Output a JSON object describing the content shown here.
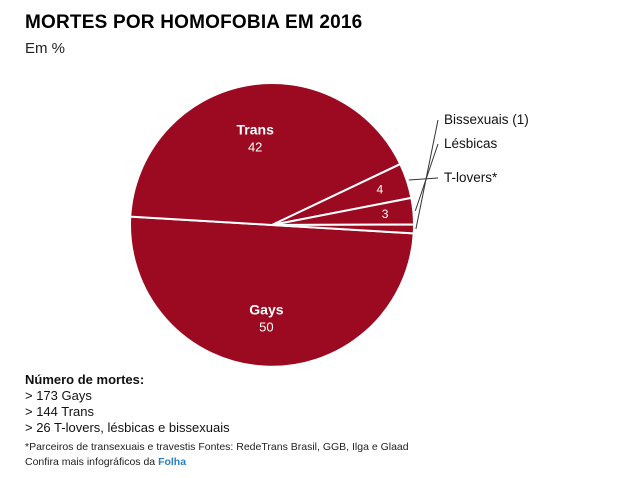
{
  "header": {
    "title": "MORTES POR HOMOFOBIA EM 2016",
    "subtitle": "Em %"
  },
  "chart_data": {
    "type": "pie",
    "title": "MORTES POR HOMOFOBIA EM 2016",
    "subtitle": "Em %",
    "categories": [
      "Gays",
      "Trans",
      "T-lovers*",
      "Lésbicas",
      "Bissexuais"
    ],
    "values": [
      50,
      42,
      4,
      3,
      1
    ],
    "labels": [
      "Gays",
      "Trans",
      "T-lovers*",
      "Lésbicas",
      "Bissexuais (1)"
    ],
    "value_labels": [
      "50",
      "42",
      "4",
      "3",
      ""
    ],
    "color": "#9b0a21",
    "separator_color": "#ffffff"
  },
  "notes": {
    "title": "Número de mortes:",
    "items": [
      "> 173 Gays",
      "> 144 Trans",
      "> 26 T-lovers, lésbicas e bissexuais"
    ]
  },
  "footnote": "*Parceiros de transexuais e travestis Fontes: RedeTrans Brasil, GGB, Ilga e Glaad",
  "credit": {
    "text": "Confira mais infográficos da ",
    "link": "Folha"
  }
}
